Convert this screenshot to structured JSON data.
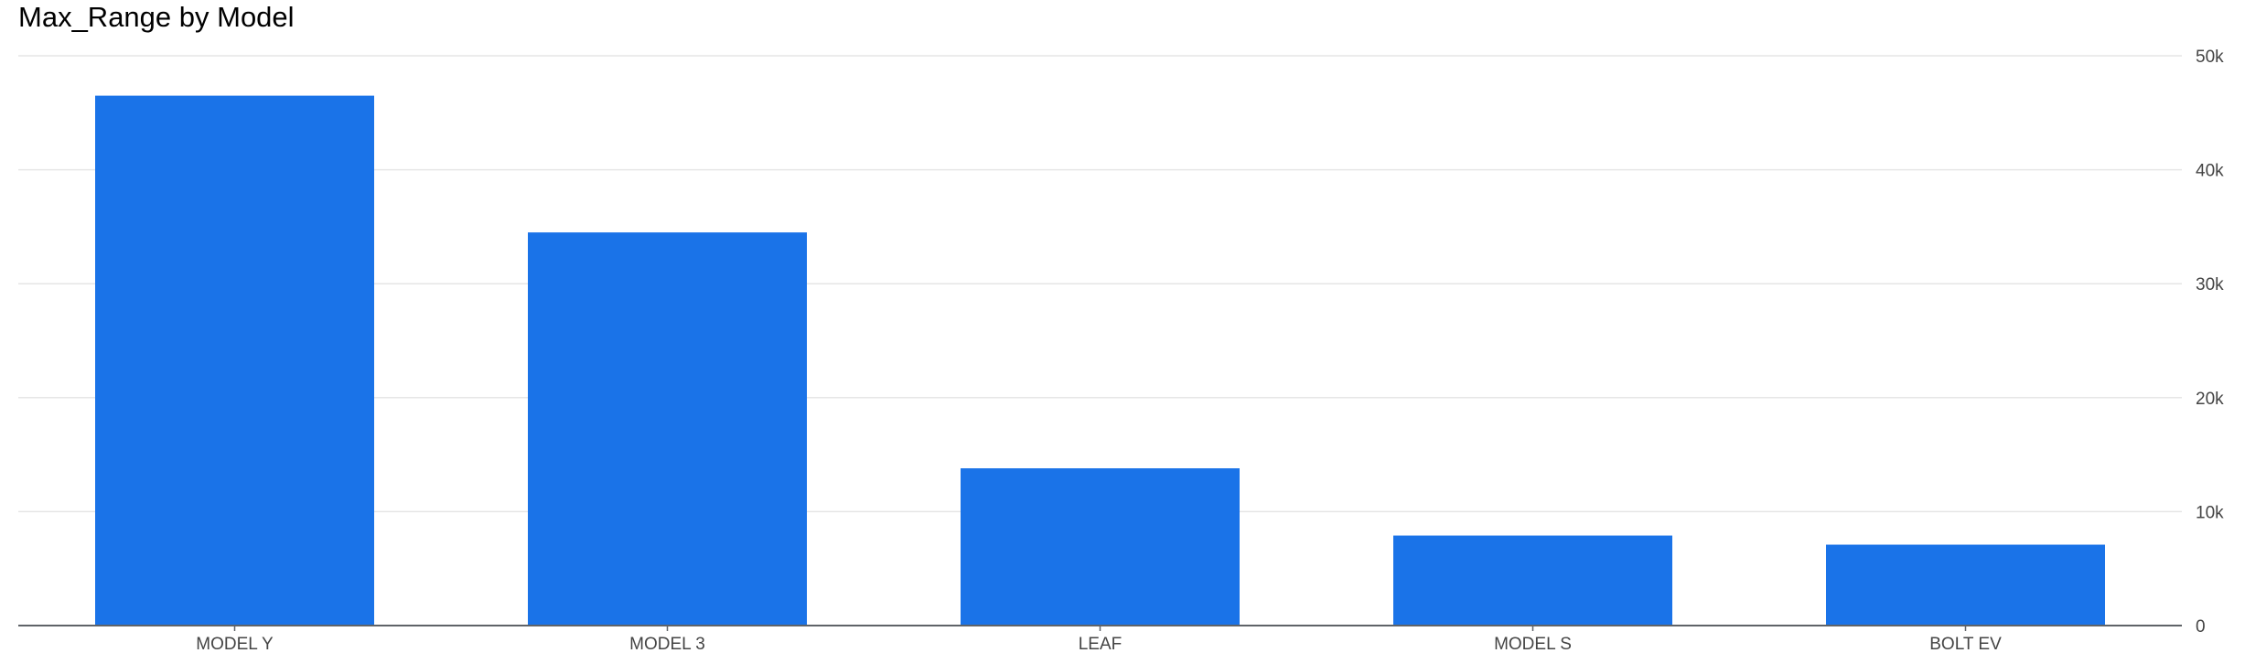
{
  "chart_data": {
    "type": "bar",
    "title": "Max_Range by Model",
    "categories": [
      "MODEL Y",
      "MODEL 3",
      "LEAF",
      "MODEL S",
      "BOLT EV"
    ],
    "values": [
      46500,
      34500,
      13800,
      7900,
      7100
    ],
    "ylim": [
      0,
      50000
    ],
    "yticks": [
      0,
      10000,
      20000,
      30000,
      40000,
      50000
    ],
    "ytick_labels": [
      "0",
      "10k",
      "20k",
      "30k",
      "40k",
      "50k"
    ],
    "y_axis_side": "right",
    "grid": true,
    "bar_color": "#1a73e8",
    "grid_color": "#e6e6e6",
    "axis_color": "#5f6368"
  }
}
